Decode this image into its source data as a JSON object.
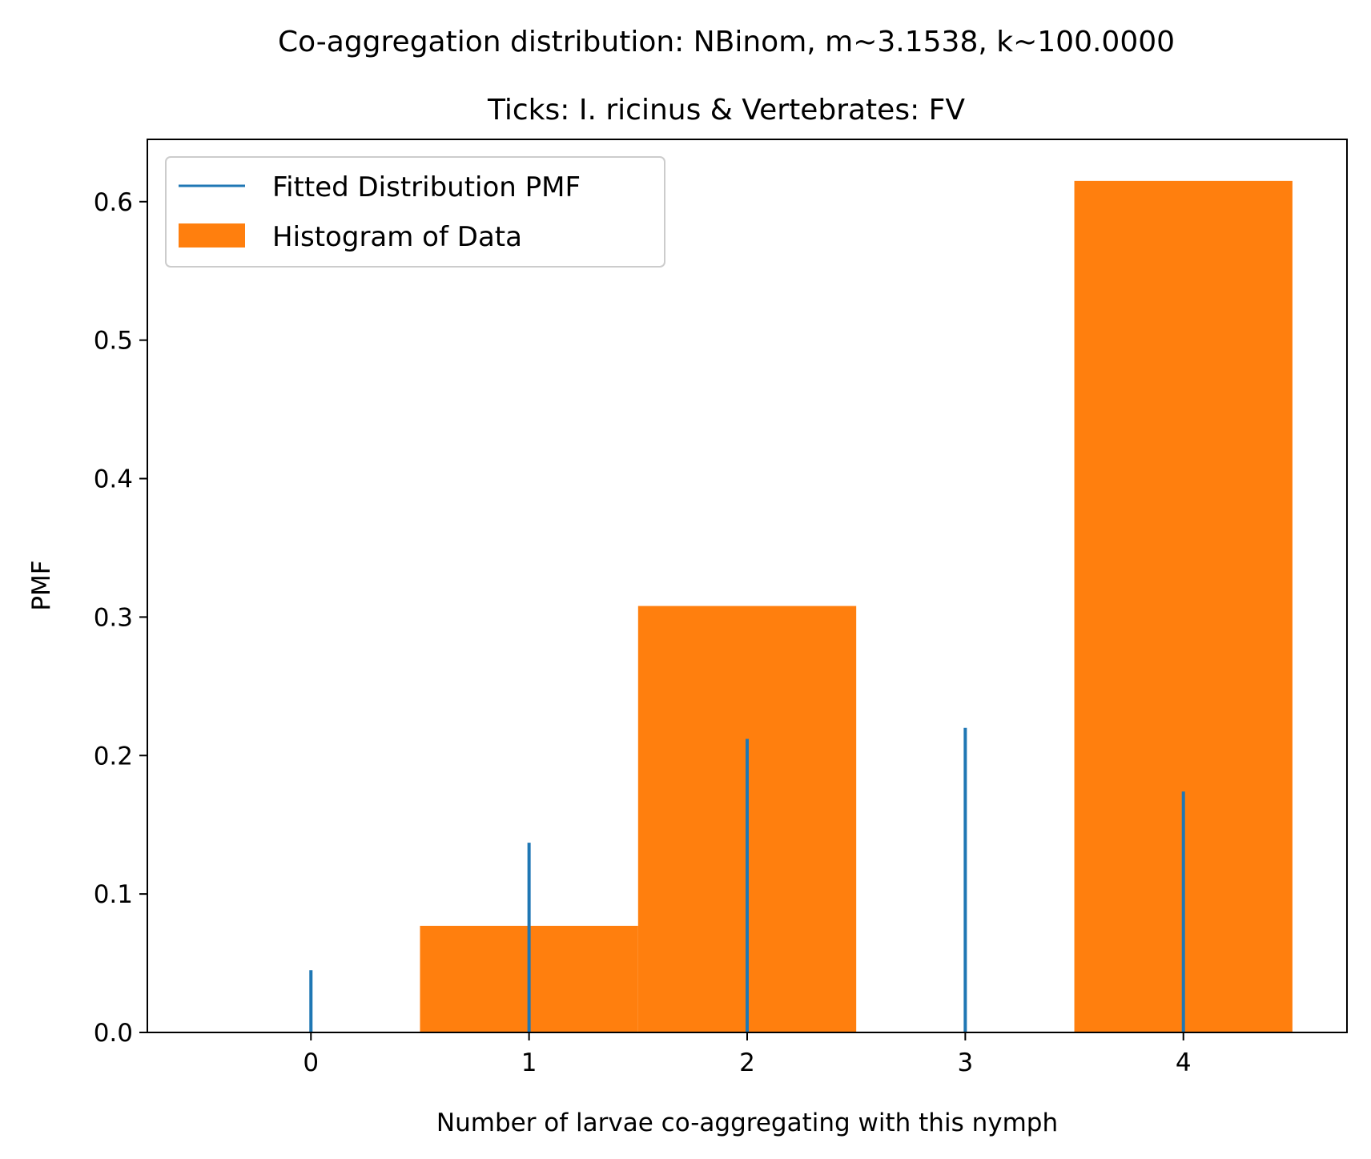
{
  "chart_data": {
    "type": "bar",
    "title": "Co-aggregation distribution: NBinom, m~3.1538, k~100.0000",
    "subtitle": "Ticks: I. ricinus & Vertebrates: FV",
    "xlabel": "Number of larvae co-aggregating with this nymph",
    "ylabel": "PMF",
    "xlim": [
      -0.75,
      4.75
    ],
    "ylim": [
      0,
      0.645
    ],
    "x_ticks": [
      0,
      1,
      2,
      3,
      4
    ],
    "x_tick_labels": [
      "0",
      "1",
      "2",
      "3",
      "4"
    ],
    "y_ticks": [
      0.0,
      0.1,
      0.2,
      0.3,
      0.4,
      0.5,
      0.6
    ],
    "y_tick_labels": [
      "0.0",
      "0.1",
      "0.2",
      "0.3",
      "0.4",
      "0.5",
      "0.6"
    ],
    "grid": false,
    "legend_position": "top-left",
    "series": [
      {
        "name": "Fitted Distribution PMF",
        "kind": "stem",
        "color": "#1f77b4",
        "x": [
          0,
          1,
          2,
          3,
          4
        ],
        "values": [
          0.045,
          0.137,
          0.212,
          0.22,
          0.174
        ]
      },
      {
        "name": "Histogram of Data",
        "kind": "histogram",
        "color": "#ff7f0e",
        "bin_edges": [
          -0.5,
          0.5,
          1.5,
          2.5,
          3.5,
          4.5
        ],
        "values": [
          0.0,
          0.077,
          0.308,
          0.0,
          0.615
        ]
      }
    ]
  }
}
